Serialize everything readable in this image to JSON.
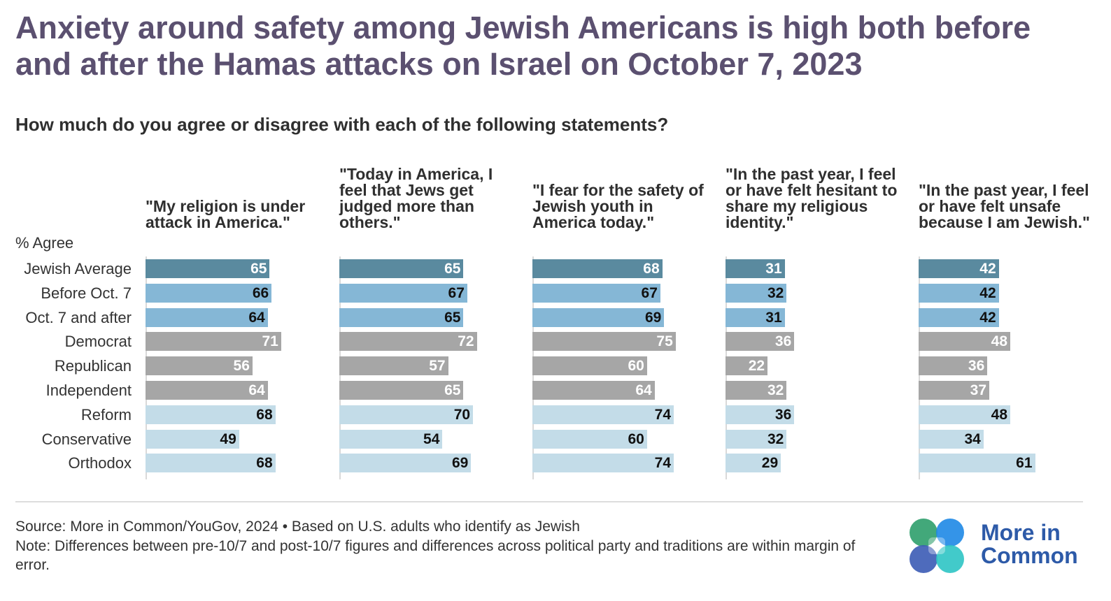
{
  "title": "Anxiety around safety among Jewish Americans is high both before and after the Hamas attacks on Israel on October 7, 2023",
  "subtitle": "How much do you agree or disagree with each of the following statements?",
  "unit_label": "% Agree",
  "footer": {
    "source": "Source: More in Common/YouGov, 2024 • Based on U.S. adults who identify as Jewish",
    "note": "Note: Differences between pre-10/7 and post-10/7 figures and differences across political party and traditions are within margin of error."
  },
  "logo": {
    "line1": "More in",
    "line2": "Common",
    "colors": [
      "#2e9e6b",
      "#1e88e5",
      "#2ec4c4",
      "#3b5bb5"
    ]
  },
  "colors": {
    "average": "#5a8a9f",
    "time": "#85b7d6",
    "party": "#a6a6a6",
    "tradition": "#c3dce8",
    "label_light": "#ffffff",
    "label_dark": "#111111"
  },
  "chart_data": {
    "type": "bar",
    "categories": [
      "Jewish Average",
      "Before Oct. 7",
      "Oct. 7 and after",
      "Democrat",
      "Republican",
      "Independent",
      "Reform",
      "Conservative",
      "Orthodox"
    ],
    "category_groups": [
      "average",
      "time",
      "time",
      "party",
      "party",
      "party",
      "tradition",
      "tradition",
      "tradition"
    ],
    "series": [
      {
        "name": "\"My religion is under attack in America.\"",
        "values": [
          65,
          66,
          64,
          71,
          56,
          64,
          68,
          49,
          68
        ]
      },
      {
        "name": "\"Today in America, I feel that Jews get judged more than others.\"",
        "values": [
          65,
          67,
          65,
          72,
          57,
          65,
          70,
          54,
          69
        ]
      },
      {
        "name": "\"I fear for the safety of Jewish youth in America today.\"",
        "values": [
          68,
          67,
          69,
          75,
          60,
          64,
          74,
          60,
          74
        ]
      },
      {
        "name": "\"In the past year, I feel or have felt hesitant to share my religious identity.\"",
        "values": [
          31,
          32,
          31,
          36,
          22,
          32,
          36,
          32,
          29
        ]
      },
      {
        "name": "\"In the past year, I feel or have felt unsafe because I am Jewish.\"",
        "values": [
          42,
          42,
          42,
          48,
          36,
          37,
          48,
          34,
          61
        ]
      }
    ],
    "ylabel": "% Agree",
    "xlim": [
      0,
      100
    ],
    "grid": false,
    "legend": "none"
  }
}
